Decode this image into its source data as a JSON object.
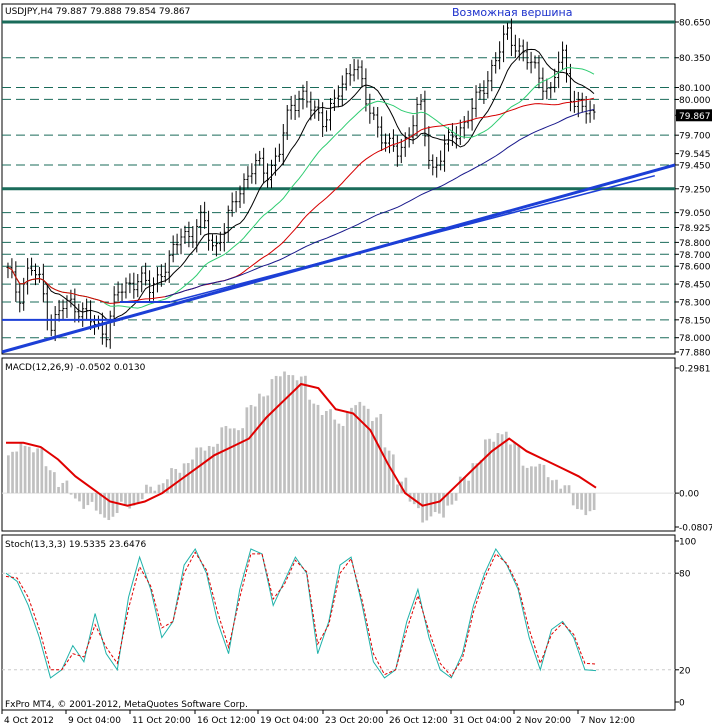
{
  "header": {
    "symbol_line": "USDJPY,H4  79.887 79.888 79.854 79.867"
  },
  "annotation": {
    "text": "Возможная вершина"
  },
  "colors": {
    "background": "#ffffff",
    "ink": "#000000",
    "bars": "#000000",
    "ma_fast": "#000000",
    "ma_mid": "#2ecc71",
    "ma_red": "#d60000",
    "ma_blue": "#1a1a8c",
    "trendline": "#1c3fd6",
    "macd_hist": "#c0c0c0",
    "macd_signal": "#e00000",
    "stoch_main": "#20b2aa",
    "stoch_signal": "#e00000",
    "annotation": "#1a2fcc"
  },
  "footer": {
    "copyright": "FxPro MT4, © 2001-2012, MetaQuotes Software Corp."
  },
  "chart_data": [
    {
      "type": "candlestick",
      "title": "USDJPY,H4  79.887 79.888 79.854 79.867",
      "ylim": [
        77.88,
        80.65
      ],
      "price_labels": [
        "80.650",
        "80.350",
        "80.100",
        "80.000",
        "79.867",
        "79.700",
        "79.545",
        "79.450",
        "79.250",
        "79.050",
        "78.925",
        "78.800",
        "78.700",
        "78.600",
        "78.450",
        "78.300",
        "78.150",
        "78.000",
        "77.880"
      ],
      "horizontal_levels": [
        80.65,
        80.35,
        80.1,
        80.0,
        79.7,
        79.45,
        79.25,
        79.05,
        78.925,
        78.8,
        78.7,
        78.6,
        78.45,
        78.3,
        78.15,
        78.0
      ],
      "thick_levels": [
        80.65,
        79.25
      ],
      "current_price": 79.867,
      "trendlines": [
        {
          "from": [
            0,
            77.88
          ],
          "to": [
            1,
            79.45
          ]
        },
        {
          "from": [
            0.25,
            78.3
          ],
          "to": [
            0.97,
            79.36
          ]
        }
      ],
      "annotations": [
        "Возможная вершина"
      ],
      "x_tick_labels": [
        "4 Oct 2012",
        "9 Oct 04:00",
        "11 Oct 20:00",
        "16 Oct 12:00",
        "19 Oct 04:00",
        "23 Oct 20:00",
        "26 Oct 12:00",
        "31 Oct 04:00",
        "2 Nov 20:00",
        "7 Nov 12:00"
      ],
      "close_path": [
        78.55,
        78.35,
        78.6,
        78.45,
        78.1,
        78.25,
        78.3,
        78.2,
        78.1,
        78.05,
        78.35,
        78.45,
        78.5,
        78.4,
        78.55,
        78.65,
        78.9,
        78.85,
        79.0,
        78.75,
        78.9,
        79.2,
        79.35,
        79.45,
        79.4,
        79.55,
        79.95,
        80.05,
        79.9,
        79.85,
        79.95,
        80.15,
        80.35,
        79.95,
        79.8,
        79.6,
        79.55,
        79.75,
        79.95,
        79.4,
        79.55,
        79.7,
        79.8,
        79.95,
        80.15,
        80.35,
        80.55,
        80.45,
        80.3,
        80.2,
        80.05,
        80.4,
        80.0,
        79.9,
        79.87
      ],
      "moving_averages": [
        {
          "name": "MA fast",
          "color": "black"
        },
        {
          "name": "MA 50",
          "color": "green"
        },
        {
          "name": "MA 100",
          "color": "red"
        },
        {
          "name": "MA 200",
          "color": "blue"
        }
      ]
    },
    {
      "type": "bar",
      "title": "MACD(12,26,9) -0.0502 0.0130",
      "ylim": [
        -0.0807,
        0.2981
      ],
      "y_tick_labels": [
        "0.2981",
        "0.00",
        "-0.0807"
      ],
      "histogram": [
        0.09,
        0.12,
        0.1,
        0.06,
        0.02,
        -0.01,
        -0.03,
        -0.05,
        -0.055,
        -0.03,
        -0.02,
        0.01,
        0.03,
        0.05,
        0.08,
        0.1,
        0.12,
        0.15,
        0.16,
        0.2,
        0.24,
        0.27,
        0.29,
        0.27,
        0.22,
        0.19,
        0.17,
        0.2,
        0.21,
        0.18,
        0.1,
        0.03,
        -0.03,
        -0.06,
        -0.055,
        -0.02,
        0.03,
        0.08,
        0.12,
        0.15,
        0.11,
        0.07,
        0.06,
        0.04,
        0.01,
        -0.03,
        -0.05
      ],
      "signal": [
        0.12,
        0.12,
        0.11,
        0.08,
        0.04,
        0.01,
        -0.02,
        -0.03,
        -0.02,
        0.0,
        0.03,
        0.06,
        0.09,
        0.11,
        0.13,
        0.18,
        0.22,
        0.26,
        0.25,
        0.2,
        0.19,
        0.15,
        0.07,
        0.0,
        -0.03,
        -0.02,
        0.02,
        0.06,
        0.1,
        0.13,
        0.1,
        0.08,
        0.06,
        0.04,
        0.013
      ]
    },
    {
      "type": "line",
      "title": "Stoch(13,3,3) 19.5335 23.6476",
      "ylim": [
        0,
        100
      ],
      "y_tick_labels": [
        "100",
        "80",
        "20",
        "0"
      ],
      "series": [
        {
          "name": "main",
          "values": [
            80,
            75,
            60,
            40,
            15,
            20,
            35,
            25,
            55,
            30,
            20,
            65,
            90,
            70,
            40,
            50,
            85,
            95,
            80,
            50,
            30,
            70,
            95,
            92,
            60,
            75,
            90,
            80,
            30,
            50,
            85,
            90,
            60,
            25,
            15,
            20,
            50,
            70,
            40,
            20,
            15,
            30,
            60,
            80,
            95,
            85,
            70,
            40,
            20,
            45,
            50,
            40,
            20,
            19.5
          ]
        },
        {
          "name": "signal",
          "values": [
            78,
            77,
            65,
            45,
            20,
            20,
            30,
            28,
            48,
            34,
            24,
            58,
            84,
            72,
            46,
            50,
            80,
            93,
            82,
            56,
            34,
            65,
            92,
            92,
            64,
            73,
            88,
            81,
            36,
            48,
            80,
            89,
            63,
            30,
            17,
            20,
            45,
            66,
            44,
            24,
            16,
            27,
            56,
            77,
            92,
            86,
            72,
            45,
            24,
            42,
            49,
            42,
            24,
            23.6
          ]
        }
      ]
    }
  ]
}
